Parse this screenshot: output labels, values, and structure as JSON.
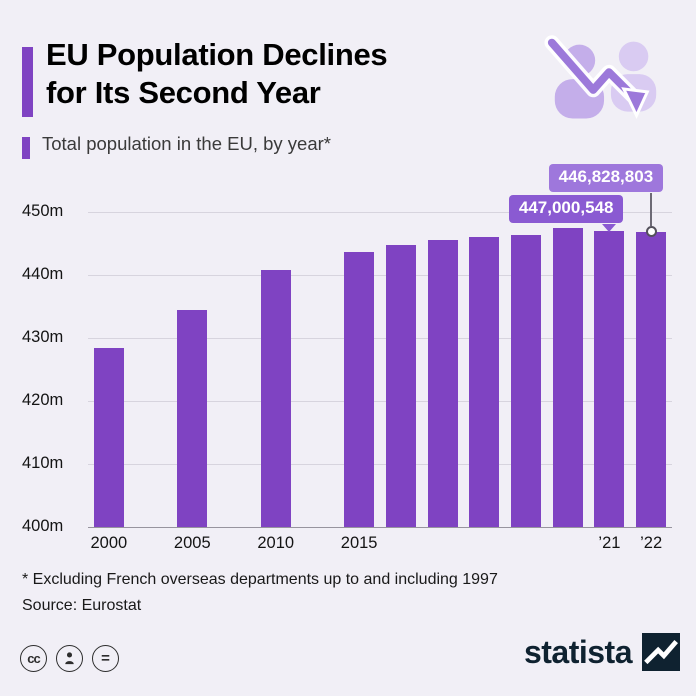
{
  "header": {
    "title_lines": [
      "EU Population Declines",
      "for Its Second Year"
    ],
    "subtitle": "Total population in the EU, by year*"
  },
  "chart_data": {
    "type": "bar",
    "title": "EU Population Declines for Its Second Year",
    "subtitle": "Total population in the EU, by year*",
    "xlabel": "",
    "ylabel": "",
    "unit": "millions",
    "ylim": [
      400,
      450
    ],
    "grid": true,
    "legend": false,
    "yticks": [
      {
        "label": "450m",
        "value": 450
      },
      {
        "label": "440m",
        "value": 440
      },
      {
        "label": "430m",
        "value": 430
      },
      {
        "label": "420m",
        "value": 420
      },
      {
        "label": "410m",
        "value": 410
      },
      {
        "label": "400m",
        "value": 400
      }
    ],
    "bars": [
      {
        "year": 2000,
        "value": 428.4,
        "label": "2000"
      },
      {
        "year": 2005,
        "value": 434.5,
        "label": "2005"
      },
      {
        "year": 2010,
        "value": 440.8,
        "label": "2010"
      },
      {
        "year": 2015,
        "value": 443.6,
        "label": "2015"
      },
      {
        "year": 2016,
        "value": 444.7
      },
      {
        "year": 2017,
        "value": 445.5
      },
      {
        "year": 2018,
        "value": 446.1
      },
      {
        "year": 2019,
        "value": 446.4
      },
      {
        "year": 2020,
        "value": 447.4
      },
      {
        "year": 2021,
        "value": 447.0,
        "label": "’21"
      },
      {
        "year": 2022,
        "value": 446.8,
        "label": "’22"
      }
    ],
    "annotations": [
      {
        "text": "446,828,803",
        "year": 2022,
        "variant": "leader-line",
        "color": "#9e77dc"
      },
      {
        "text": "447,000,548",
        "year": 2021,
        "variant": "arrow-down",
        "color": "#8a5ad2"
      }
    ],
    "colors": {
      "bar": "#7f43c2",
      "grid": "#d7d4de",
      "baseline": "#97949e"
    }
  },
  "footer": {
    "footnote": "* Excluding French overseas departments up to and including 1997",
    "source": "Source: Eurostat"
  },
  "branding": {
    "logo_text": "statista",
    "license": {
      "cc_glyph": "cc",
      "nd_glyph": "="
    }
  },
  "colors": {
    "background": "#f1eff6",
    "accent_purple": "#7f43c2",
    "logo_navy": "#0f2230"
  }
}
